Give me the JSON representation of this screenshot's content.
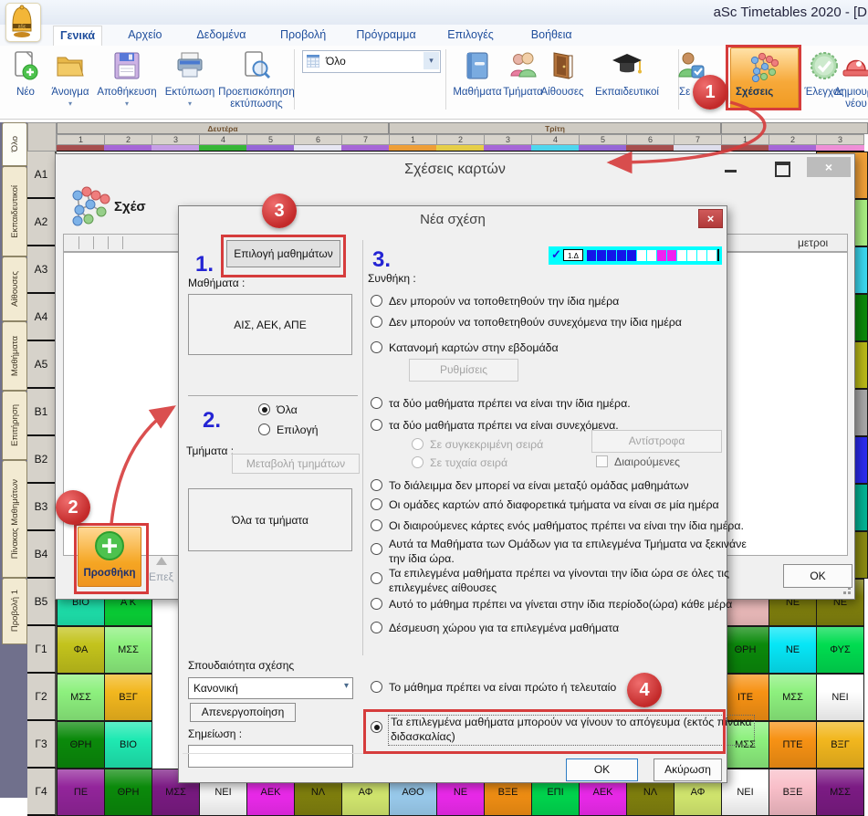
{
  "window": {
    "title": "aSc Timetables 2020  - [D",
    "close_glyph": "×"
  },
  "menu": {
    "tabs": [
      {
        "label": "Γενικά",
        "active": true
      },
      {
        "label": "Αρχείο",
        "active": false
      },
      {
        "label": "Δεδομένα",
        "active": false
      },
      {
        "label": "Προβολή",
        "active": false
      },
      {
        "label": "Πρόγραμμα",
        "active": false
      },
      {
        "label": "Επιλογές",
        "active": false
      },
      {
        "label": "Βοήθεια",
        "active": false
      }
    ]
  },
  "toolbar": {
    "buttons_left": [
      {
        "label": "Νέο",
        "icon": "new-document-icon",
        "dropdown": false
      },
      {
        "label": "Άνοιγμα",
        "icon": "open-folder-icon",
        "dropdown": true
      },
      {
        "label": "Αποθήκευση",
        "icon": "save-floppy-icon",
        "dropdown": true
      },
      {
        "label": "Εκτύπωση",
        "icon": "printer-icon",
        "dropdown": true
      },
      {
        "label": "Προεπισκόπηση",
        "label2": "εκτύπωσης",
        "icon": "print-preview-icon",
        "dropdown": false
      }
    ],
    "view_dropdown": {
      "value": "Όλο",
      "icon": "table-grid-icon"
    },
    "buttons_data": [
      {
        "label": "Μαθήματα",
        "icon": "book-icon"
      },
      {
        "label": "Τμήματα",
        "icon": "students-icon"
      },
      {
        "label": "Αίθουσες",
        "icon": "door-icon"
      },
      {
        "label": "Εκπαιδευτικοί",
        "icon": "graduation-cap-icon"
      }
    ],
    "partial_button": {
      "label_start": "Σε",
      "label_end": "α",
      "icon": "person-check-icon"
    },
    "relations_button": {
      "label": "Σχέσεις",
      "icon": "relations-molecule-icon",
      "highlighted": true
    },
    "buttons_right": [
      {
        "label": "Έλεγχος",
        "icon": "check-seal-icon"
      },
      {
        "label": "Δημιουργ",
        "label2": "νέου",
        "icon": "siren-icon"
      }
    ]
  },
  "timetable": {
    "days": [
      {
        "name": "Δευτέρα",
        "periods": [
          "1",
          "2",
          "3",
          "4",
          "5",
          "6",
          "7"
        ]
      },
      {
        "name": "Τρίτη",
        "periods": [
          "1",
          "2",
          "3",
          "4",
          "5",
          "6",
          "7"
        ]
      },
      {
        "name": "",
        "periods": [
          "1",
          "2",
          "3"
        ]
      }
    ],
    "side_tabs": [
      "Όλο",
      "Εκπαιδευτικοί",
      "Αίθουσες",
      "Μαθήματα",
      "Επιτήρηση",
      "Πίνακας Μαθημάτων",
      "Προβολή 1"
    ],
    "row_labels": [
      "A1",
      "A2",
      "A3",
      "A4",
      "A5",
      "B1",
      "B2",
      "B3",
      "B4",
      "B5",
      "Γ1",
      "Γ2",
      "Γ3",
      "Γ4"
    ],
    "period_colors": [
      "#a85050",
      "#a868d8",
      "#c8a0e8",
      "#38b838",
      "#9868d8",
      "#e8e8f4",
      "#a868d8",
      "#f0a038",
      "#e8d048",
      "#a868d8",
      "#50d8f0",
      "#9868d8",
      "#a85050",
      "#e0e0ee",
      "#a85050",
      "#a868d8",
      "#f090d8"
    ],
    "palette": {
      "teal": "#1fe9b2",
      "green": "#0ad838",
      "green2": "#00dc50",
      "oliveYellow": "#c3c31c",
      "lightGreen": "#8df07e",
      "amber": "#f2b71e",
      "darkGreen": "#0b8a0b",
      "purple": "#93259b",
      "purple2": "#7c1b84",
      "white": "#ffffff",
      "magenta": "#f22bf2",
      "olive": "#83830e",
      "yellowGreen": "#d9ee72",
      "lightBlue": "#9fd2f5",
      "orange": "#f79214",
      "cyan": "#06e6f6",
      "pinkCell": "#f9bfc9",
      "pink": "#f6c3c3",
      "gray": "#a9a9a9",
      "blue": "#2b2bf0",
      "tealDark": "#04b394",
      "oliveDark": "#8a8a12",
      "lgreenEdge": "#a9f082",
      "cyanEdge": "#3cd9f0",
      "orangeEdge": "#f0a038",
      "oliveEdge": "#b9b918"
    },
    "cells": [
      {
        "row": "B5",
        "col": 0,
        "text": "ΒΙΟ",
        "color": "teal"
      },
      {
        "row": "B5",
        "col": 1,
        "text": "Α Κ",
        "color": "green"
      },
      {
        "row": "B5",
        "col": 14,
        "text": "",
        "color": "pink"
      },
      {
        "row": "B5",
        "col": 15,
        "text": "ΝΕ",
        "color": "olive"
      },
      {
        "row": "B5",
        "col": 16,
        "text": "ΝΕ",
        "color": "olive"
      },
      {
        "row": "Γ1",
        "col": 0,
        "text": "ΦΑ",
        "color": "oliveYellow"
      },
      {
        "row": "Γ1",
        "col": 1,
        "text": "ΜΣΣ",
        "color": "lightGreen"
      },
      {
        "row": "Γ1",
        "col": 14,
        "text": "ΘΡΗ",
        "color": "darkGreen"
      },
      {
        "row": "Γ1",
        "col": 15,
        "text": "ΝΕ",
        "color": "cyan"
      },
      {
        "row": "Γ1",
        "col": 16,
        "text": "ΦΥΣ",
        "color": "green2"
      },
      {
        "row": "Γ2",
        "col": 0,
        "text": "ΜΣΣ",
        "color": "lightGreen"
      },
      {
        "row": "Γ2",
        "col": 1,
        "text": "ΒΞΓ",
        "color": "amber"
      },
      {
        "row": "Γ2",
        "col": 14,
        "text": "ΙΤΕ",
        "color": "orange"
      },
      {
        "row": "Γ2",
        "col": 15,
        "text": "ΜΣΣ",
        "color": "lightGreen"
      },
      {
        "row": "Γ2",
        "col": 16,
        "text": "ΝΕΙ",
        "color": "white"
      },
      {
        "row": "Γ3",
        "col": 0,
        "text": "ΘΡΗ",
        "color": "darkGreen"
      },
      {
        "row": "Γ3",
        "col": 1,
        "text": "ΒΙΟ",
        "color": "teal"
      },
      {
        "row": "Γ3",
        "col": 14,
        "text": "ΜΣΣ",
        "color": "lightGreen"
      },
      {
        "row": "Γ3",
        "col": 15,
        "text": "ΠΤΕ",
        "color": "orange"
      },
      {
        "row": "Γ3",
        "col": 16,
        "text": "ΒΞΓ",
        "color": "amber"
      },
      {
        "row": "Γ4",
        "col": 0,
        "text": "ΠΕ",
        "color": "purple"
      },
      {
        "row": "Γ4",
        "col": 1,
        "text": "ΘΡΗ",
        "color": "darkGreen"
      },
      {
        "row": "Γ4",
        "col": 2,
        "text": "ΜΣΣ",
        "color": "purple2"
      },
      {
        "row": "Γ4",
        "col": 3,
        "text": "ΝΕΙ",
        "color": "white"
      },
      {
        "row": "Γ4",
        "col": 4,
        "text": "ΑΕΚ",
        "color": "magenta"
      },
      {
        "row": "Γ4",
        "col": 5,
        "text": "ΝΛ",
        "color": "olive"
      },
      {
        "row": "Γ4",
        "col": 6,
        "text": "ΑΦ",
        "color": "yellowGreen"
      },
      {
        "row": "Γ4",
        "col": 7,
        "text": "ΑΘΟ",
        "color": "lightBlue"
      },
      {
        "row": "Γ4",
        "col": 8,
        "text": "ΝΕ",
        "color": "magenta"
      },
      {
        "row": "Γ4",
        "col": 9,
        "text": "ΒΞΕ",
        "color": "orange"
      },
      {
        "row": "Γ4",
        "col": 10,
        "text": "ΕΠΙ",
        "color": "green2"
      },
      {
        "row": "Γ4",
        "col": 11,
        "text": "ΑΕΚ",
        "color": "magenta"
      },
      {
        "row": "Γ4",
        "col": 12,
        "text": "ΝΛ",
        "color": "olive"
      },
      {
        "row": "Γ4",
        "col": 13,
        "text": "ΑΦ",
        "color": "yellowGreen"
      },
      {
        "row": "Γ4",
        "col": 14,
        "text": "ΝΕΙ",
        "color": "white"
      },
      {
        "row": "Γ4",
        "col": 15,
        "text": "ΒΞΕ",
        "color": "pinkCell"
      },
      {
        "row": "Γ4",
        "col": 16,
        "text": "ΜΣΣ",
        "color": "purple2"
      }
    ],
    "right_edge_rows": [
      "orangeEdge",
      "lgreenEdge",
      "cyanEdge",
      "darkGreen",
      "oliveEdge",
      "gray",
      "blue",
      "tealDark",
      "oliveDark"
    ]
  },
  "relations_dialog": {
    "title": "Σχέσεις καρτών",
    "header_fragment": "Σχέσ",
    "columns_fragment": "μετροι",
    "add_button": "Προσθήκη",
    "edit_fragment": "Επεξ",
    "ok_button": "OK",
    "close_glyph": "×"
  },
  "new_relation_dialog": {
    "title": "Νέα σχέση",
    "close_glyph": "×",
    "step1": {
      "marker": "1.",
      "select_button": "Επιλογή μαθημάτων",
      "courses_label": "Μαθήματα :",
      "courses_value": "ΑΙΣ, ΑΕΚ, ΑΠΕ"
    },
    "step2": {
      "marker": "2.",
      "radio_all": "Όλα",
      "radio_select": "Επιλογή",
      "classes_label": "Τμήματα :",
      "change_button": "Μεταβολή τμημάτων",
      "classes_value": "Όλα τα τμήματα"
    },
    "step3": {
      "marker": "3.",
      "condition_label": "Συνθήκη :",
      "strip_tag": "1.Δ",
      "strip_pattern": "BBBBBWWMMWWWW",
      "options": [
        {
          "lines": [
            "Δεν μπορούν να τοποθετηθούν την ίδια ημέρα"
          ],
          "state": "normal"
        },
        {
          "lines": [
            "Δεν μπορούν να τοποθετηθούν συνεχόμενα την ίδια ημέρα"
          ],
          "state": "normal"
        },
        {
          "lines": [
            "Κατανομή καρτών στην εβδομάδα"
          ],
          "state": "normal"
        },
        {
          "lines": [
            "τα δύο μαθήματα πρέπει να είναι την ίδια ημέρα."
          ],
          "state": "normal"
        },
        {
          "lines": [
            "τα δύο μαθήματα πρέπει να είναι συνεχόμενα."
          ],
          "state": "normal"
        },
        {
          "lines": [
            "Το διάλειμμα δεν μπορεί να είναι μεταξύ ομάδας μαθημάτων"
          ],
          "state": "normal"
        },
        {
          "lines": [
            "Οι ομάδες καρτών από διαφορετικά τμήματα να είναι σε μία ημέρα"
          ],
          "state": "normal"
        },
        {
          "lines": [
            "Οι διαιρούμενες κάρτες ενός μαθήματος πρέπει να είναι την ίδια ημέρα."
          ],
          "state": "normal"
        },
        {
          "lines": [
            "Αυτά τα Μαθήματα των Ομάδων για τα επιλεγμένα Τμήματα να ξεκινάνε",
            "την ίδια ώρα."
          ],
          "state": "normal"
        },
        {
          "lines": [
            "Τα επιλεγμένα μαθήματα πρέπει να γίνονται την ίδια ώρα σε όλες τις",
            "επιλεγμένες αίθουσες"
          ],
          "state": "normal"
        },
        {
          "lines": [
            "Αυτό το μάθημα πρέπει να γίνεται στην ίδια περίοδο(ώρα) κάθε μέρα"
          ],
          "state": "normal"
        },
        {
          "lines": [
            "Δέσμευση χώρου για τα επιλεγμένα μαθήματα"
          ],
          "state": "normal"
        },
        {
          "lines": [
            "Το μάθημα πρέπει να είναι πρώτο ή τελευταίο"
          ],
          "state": "normal"
        },
        {
          "lines": [
            "Τα επιλεγμένα μαθήματα μπορούν να γίνουν το απόγευμα (εκτός πίνακα",
            "διδασκαλίας)"
          ],
          "state": "selected"
        }
      ],
      "settings_button": "Ρυθμίσεις",
      "order_fixed": "Σε συγκεκριμένη σειρά",
      "order_random": "Σε τυχαία σειρά",
      "reverse_button": "Αντίστροφα",
      "divided_checkbox": "Διαιρούμενες"
    },
    "importance": {
      "label": "Σπουδαιότητα σχέσης",
      "value": "Κανονική"
    },
    "disable_button": "Απενεργοποίηση",
    "note_label": "Σημείωση :",
    "note_value": "",
    "ok_button": "OK",
    "cancel_button": "Ακύρωση"
  },
  "annotations": {
    "c1": "1",
    "c2": "2",
    "c3": "3",
    "c4": "4",
    "accent": "#d63c3c"
  }
}
